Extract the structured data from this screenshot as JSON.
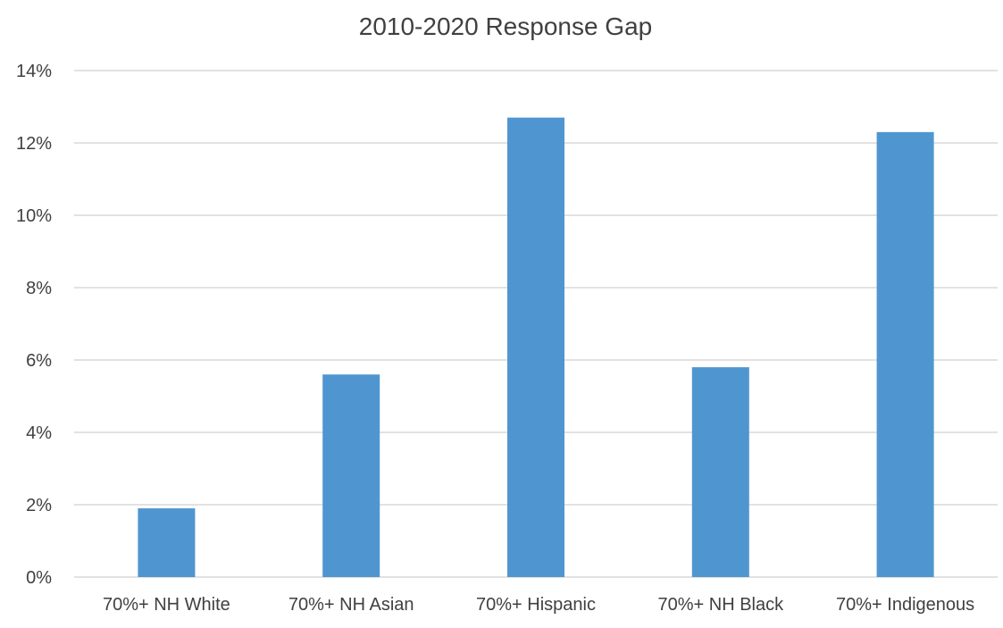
{
  "chart_data": {
    "type": "bar",
    "title": "2010-2020 Response Gap",
    "xlabel": "",
    "ylabel": "",
    "categories": [
      "70%+ NH White",
      "70%+ NH Asian",
      "70%+ Hispanic",
      "70%+ NH Black",
      "70%+ Indigenous"
    ],
    "values": [
      1.9,
      5.6,
      12.7,
      5.8,
      12.3
    ],
    "value_unit": "%",
    "ylim": [
      0,
      14
    ],
    "y_ticks": [
      0,
      2,
      4,
      6,
      8,
      10,
      12,
      14
    ],
    "y_tick_labels": [
      "0%",
      "2%",
      "4%",
      "6%",
      "8%",
      "10%",
      "12%",
      "14%"
    ],
    "grid": true,
    "legend": "none",
    "colors": {
      "bar": "#4f96d0",
      "grid": "#d9d9d9",
      "text": "#404040"
    }
  }
}
